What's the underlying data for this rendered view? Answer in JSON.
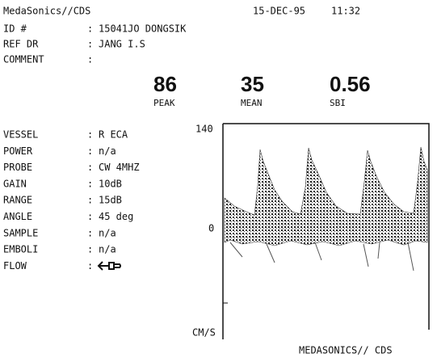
{
  "header": {
    "brand": "MedaSonics//CDS",
    "date": "15-DEC-95",
    "time": "11:32"
  },
  "separator": ":",
  "patient": [
    {
      "label": "ID #",
      "value": "15041JO DONGSIK"
    },
    {
      "label": "REF DR",
      "value": "JANG I.S"
    },
    {
      "label": "COMMENT"
    }
  ],
  "metrics": [
    {
      "value": 86,
      "label": "PEAK"
    },
    {
      "value": 35,
      "label": "MEAN"
    },
    {
      "value": 0.56,
      "label": "SBI"
    }
  ],
  "settings": [
    {
      "label": "VESSEL",
      "value": "R ECA"
    },
    {
      "label": "POWER",
      "value": "n/a"
    },
    {
      "label": "PROBE",
      "value": "CW 4MHZ"
    },
    {
      "label": "GAIN",
      "value": "10dB"
    },
    {
      "label": "RANGE",
      "value": "15dB"
    },
    {
      "label": "ANGLE",
      "value": "45 deg"
    },
    {
      "label": "SAMPLE",
      "value": "n/a"
    },
    {
      "label": "EMBOLI",
      "value": "n/a"
    },
    {
      "label": "FLOW"
    }
  ],
  "spectrum": {
    "top_label": "140",
    "zero_label": "0",
    "unit": "CM/S",
    "footer": "MEDASONICS// CDS"
  }
}
